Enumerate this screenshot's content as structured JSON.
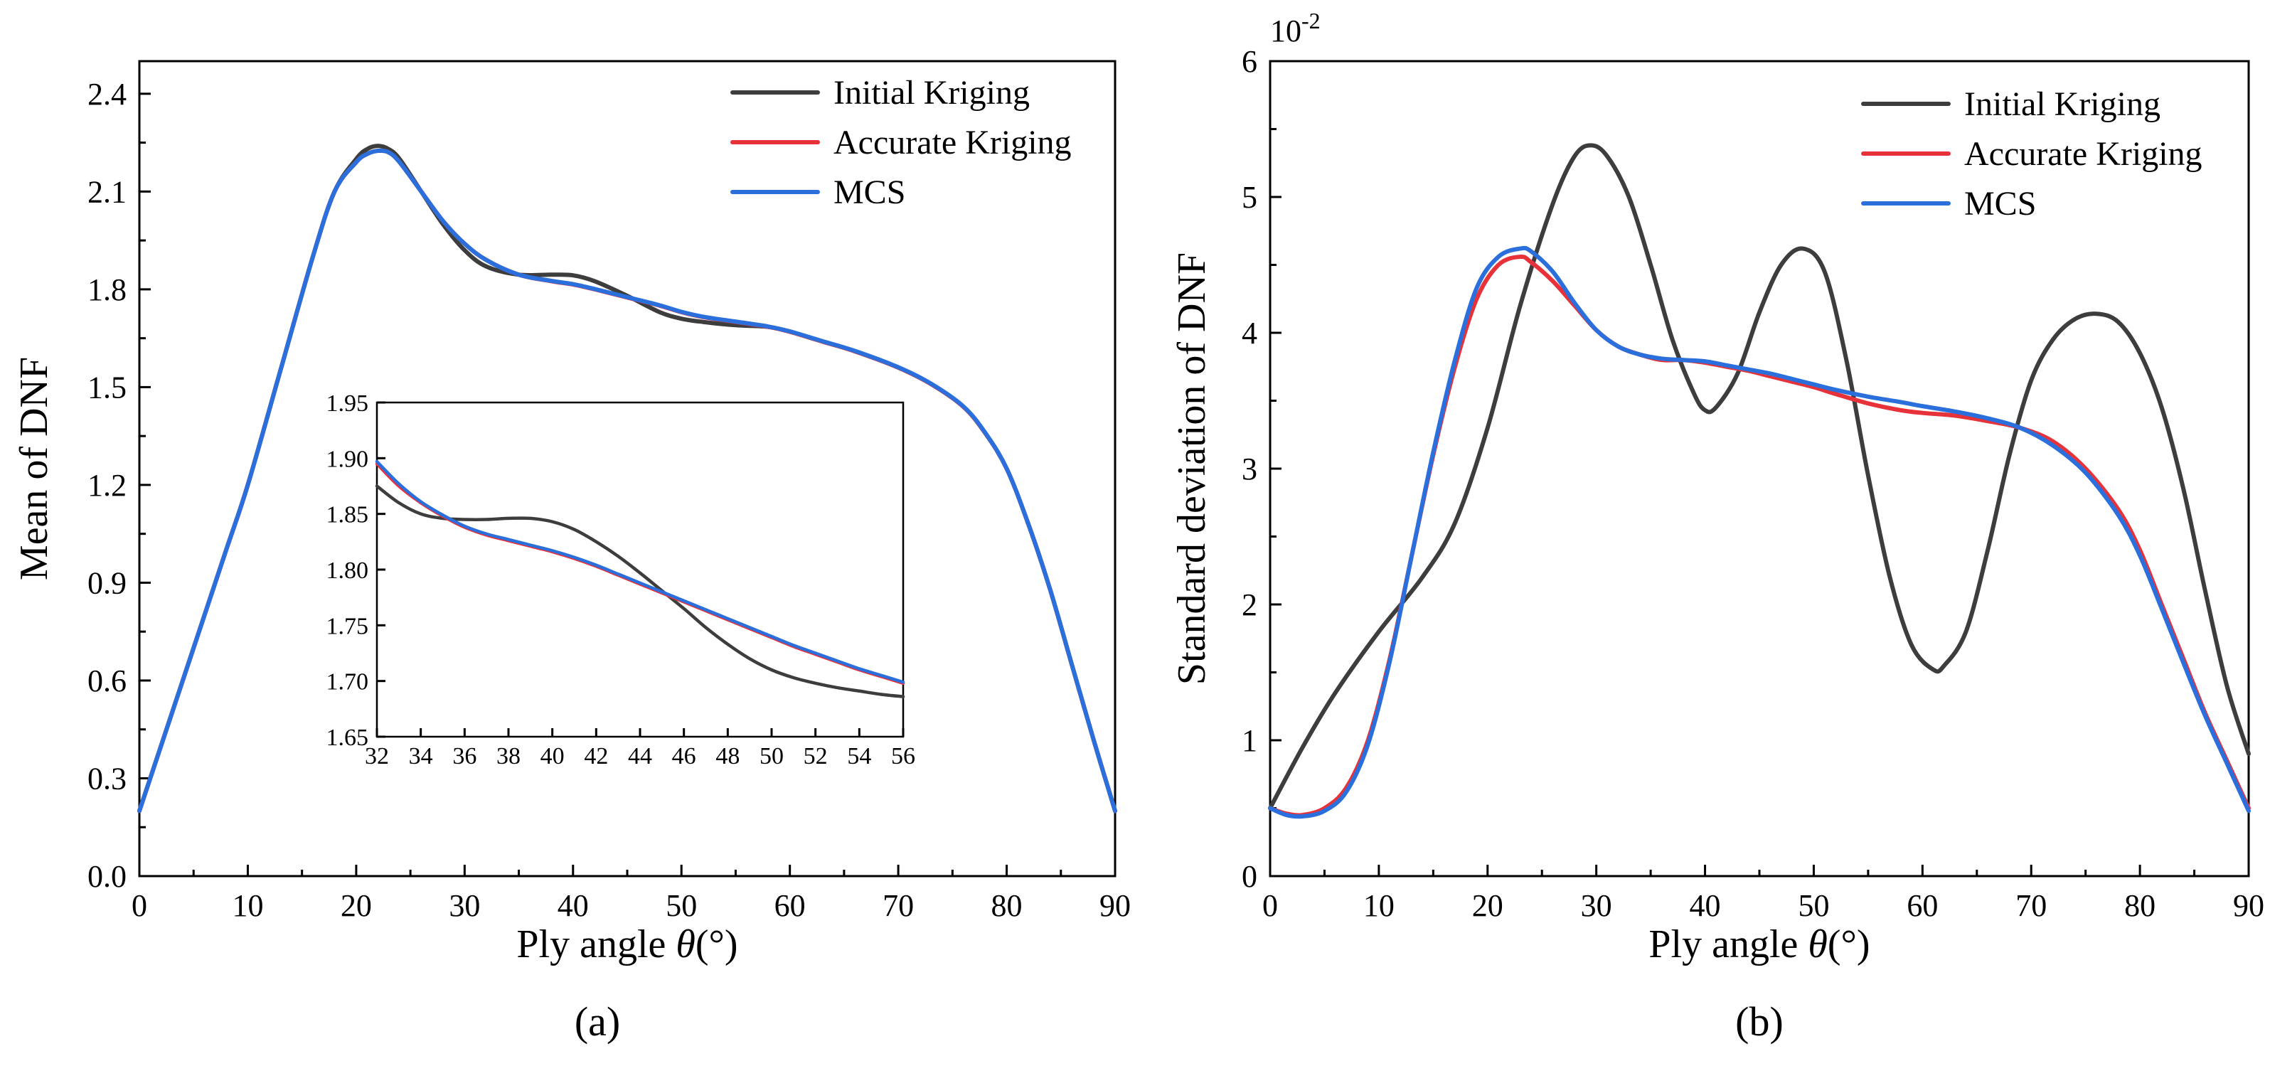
{
  "chart_data": [
    {
      "id": "a",
      "type": "line",
      "caption": "(a)",
      "xlabel_prefix": "Ply angle ",
      "xlabel_symbol": "θ",
      "xlabel_suffix": "(°)",
      "ylabel": "Mean of DNF",
      "xlim": [
        0,
        90
      ],
      "ylim": [
        0,
        2.5
      ],
      "xticks": [
        0,
        10,
        20,
        30,
        40,
        50,
        60,
        70,
        80,
        90
      ],
      "xtick_labels": [
        "0",
        "10",
        "20",
        "30",
        "40",
        "50",
        "60",
        "70",
        "80",
        "90"
      ],
      "yticks": [
        0.0,
        0.3,
        0.6,
        0.9,
        1.2,
        1.5,
        1.8,
        2.1,
        2.4
      ],
      "ytick_labels": [
        "0.0",
        "0.3",
        "0.6",
        "0.9",
        "1.2",
        "1.5",
        "1.8",
        "2.1",
        "2.4"
      ],
      "legend": [
        "Initial Kriging",
        "Accurate Kriging",
        "MCS"
      ],
      "colors": [
        "#3d3d3d",
        "#e8323a",
        "#2a6fdc"
      ],
      "series": [
        {
          "name": "Initial Kriging",
          "x": [
            0,
            2,
            5,
            8,
            10,
            13,
            16,
            18,
            20,
            21,
            22,
            23,
            24,
            26,
            28,
            30,
            32,
            35,
            38,
            40,
            42,
            45,
            48,
            50,
            52,
            55,
            58,
            60,
            63,
            66,
            70,
            73,
            76,
            78,
            80,
            82,
            84,
            86,
            88,
            90
          ],
          "y": [
            0.2,
            0.4,
            0.7,
            1.0,
            1.2,
            1.55,
            1.9,
            2.1,
            2.2,
            2.23,
            2.24,
            2.23,
            2.2,
            2.1,
            2.0,
            1.92,
            1.87,
            1.845,
            1.845,
            1.843,
            1.825,
            1.78,
            1.73,
            1.71,
            1.7,
            1.69,
            1.685,
            1.67,
            1.64,
            1.61,
            1.56,
            1.51,
            1.44,
            1.36,
            1.25,
            1.08,
            0.88,
            0.65,
            0.42,
            0.2
          ]
        },
        {
          "name": "Accurate Kriging",
          "x": [
            0,
            2,
            5,
            8,
            10,
            13,
            16,
            18,
            20,
            21,
            22,
            23,
            24,
            26,
            28,
            30,
            32,
            35,
            38,
            40,
            42,
            45,
            48,
            50,
            52,
            55,
            58,
            60,
            63,
            66,
            70,
            73,
            76,
            78,
            80,
            82,
            84,
            86,
            88,
            90
          ],
          "y": [
            0.2,
            0.4,
            0.7,
            1.0,
            1.2,
            1.55,
            1.9,
            2.1,
            2.19,
            2.215,
            2.225,
            2.22,
            2.19,
            2.1,
            2.01,
            1.94,
            1.89,
            1.845,
            1.825,
            1.815,
            1.8,
            1.775,
            1.75,
            1.73,
            1.715,
            1.7,
            1.685,
            1.67,
            1.64,
            1.61,
            1.56,
            1.51,
            1.44,
            1.36,
            1.25,
            1.08,
            0.88,
            0.65,
            0.42,
            0.2
          ]
        },
        {
          "name": "MCS",
          "x": [
            0,
            2,
            5,
            8,
            10,
            13,
            16,
            18,
            20,
            21,
            22,
            23,
            24,
            26,
            28,
            30,
            32,
            35,
            38,
            40,
            42,
            45,
            48,
            50,
            52,
            55,
            58,
            60,
            63,
            66,
            70,
            73,
            76,
            78,
            80,
            82,
            84,
            86,
            88,
            90
          ],
          "y": [
            0.2,
            0.4,
            0.7,
            1.0,
            1.2,
            1.55,
            1.9,
            2.1,
            2.19,
            2.215,
            2.225,
            2.22,
            2.19,
            2.1,
            2.01,
            1.94,
            1.89,
            1.845,
            1.826,
            1.816,
            1.801,
            1.776,
            1.751,
            1.731,
            1.716,
            1.701,
            1.686,
            1.671,
            1.641,
            1.611,
            1.561,
            1.511,
            1.441,
            1.361,
            1.25,
            1.08,
            0.88,
            0.65,
            0.42,
            0.2
          ]
        }
      ],
      "inset": {
        "xlim": [
          32,
          56
        ],
        "ylim": [
          1.65,
          1.95
        ],
        "xticks": [
          32,
          34,
          36,
          38,
          40,
          42,
          44,
          46,
          48,
          50,
          52,
          54,
          56
        ],
        "xtick_labels": [
          "32",
          "34",
          "36",
          "38",
          "40",
          "42",
          "44",
          "46",
          "48",
          "50",
          "52",
          "54",
          "56"
        ],
        "yticks": [
          1.65,
          1.7,
          1.75,
          1.8,
          1.85,
          1.9,
          1.95
        ],
        "ytick_labels": [
          "1.65",
          "1.70",
          "1.75",
          "1.80",
          "1.85",
          "1.90",
          "1.95"
        ],
        "series": [
          {
            "name": "Initial Kriging",
            "x": [
              32,
              33,
              34,
              35,
              36,
              37,
              38,
              39,
              40,
              41,
              42,
              43,
              44,
              45,
              46,
              47,
              48,
              49,
              50,
              51,
              52,
              53,
              54,
              55,
              56
            ],
            "y": [
              1.875,
              1.86,
              1.85,
              1.846,
              1.845,
              1.845,
              1.846,
              1.846,
              1.843,
              1.836,
              1.825,
              1.812,
              1.797,
              1.781,
              1.765,
              1.748,
              1.733,
              1.72,
              1.71,
              1.703,
              1.698,
              1.694,
              1.691,
              1.688,
              1.686
            ]
          },
          {
            "name": "Accurate Kriging",
            "x": [
              32,
              33,
              34,
              35,
              36,
              37,
              38,
              39,
              40,
              41,
              42,
              43,
              44,
              45,
              46,
              47,
              48,
              49,
              50,
              51,
              52,
              53,
              54,
              55,
              56
            ],
            "y": [
              1.895,
              1.875,
              1.86,
              1.848,
              1.838,
              1.831,
              1.826,
              1.821,
              1.816,
              1.81,
              1.803,
              1.795,
              1.787,
              1.779,
              1.771,
              1.763,
              1.755,
              1.747,
              1.739,
              1.731,
              1.724,
              1.717,
              1.71,
              1.704,
              1.698
            ]
          },
          {
            "name": "MCS",
            "x": [
              32,
              33,
              34,
              35,
              36,
              37,
              38,
              39,
              40,
              41,
              42,
              43,
              44,
              45,
              46,
              47,
              48,
              49,
              50,
              51,
              52,
              53,
              54,
              55,
              56
            ],
            "y": [
              1.897,
              1.877,
              1.861,
              1.849,
              1.839,
              1.832,
              1.827,
              1.822,
              1.817,
              1.811,
              1.804,
              1.796,
              1.788,
              1.78,
              1.772,
              1.764,
              1.756,
              1.748,
              1.74,
              1.732,
              1.725,
              1.718,
              1.711,
              1.705,
              1.699
            ]
          }
        ]
      }
    },
    {
      "id": "b",
      "type": "line",
      "caption": "(b)",
      "xlabel_prefix": "Ply angle ",
      "xlabel_symbol": "θ",
      "xlabel_suffix": "(°)",
      "ylabel": "Standard deviation of DNF",
      "yscale_label_base": "10",
      "yscale_label_exp": "-2",
      "xlim": [
        0,
        90
      ],
      "ylim": [
        0,
        6
      ],
      "xticks": [
        0,
        10,
        20,
        30,
        40,
        50,
        60,
        70,
        80,
        90
      ],
      "xtick_labels": [
        "0",
        "10",
        "20",
        "30",
        "40",
        "50",
        "60",
        "70",
        "80",
        "90"
      ],
      "yticks": [
        0,
        1,
        2,
        3,
        4,
        5,
        6
      ],
      "ytick_labels": [
        "0",
        "1",
        "2",
        "3",
        "4",
        "5",
        "6"
      ],
      "legend": [
        "Initial Kriging",
        "Accurate Kriging",
        "MCS"
      ],
      "colors": [
        "#3d3d3d",
        "#e8323a",
        "#2a6fdc"
      ],
      "series": [
        {
          "name": "Initial Kriging",
          "x": [
            0,
            3,
            6,
            10,
            14,
            17,
            20,
            23,
            26,
            28,
            29.5,
            31,
            33,
            35,
            37,
            39,
            40,
            41,
            43,
            45,
            47,
            49,
            51,
            53,
            55,
            57,
            59,
            61,
            62,
            64,
            66,
            68,
            70,
            72,
            74,
            76,
            78,
            80,
            82,
            84,
            86,
            88,
            90
          ],
          "y": [
            0.5,
            0.95,
            1.35,
            1.8,
            2.2,
            2.6,
            3.3,
            4.2,
            4.95,
            5.3,
            5.38,
            5.3,
            5.0,
            4.5,
            3.95,
            3.55,
            3.43,
            3.45,
            3.7,
            4.15,
            4.5,
            4.62,
            4.45,
            3.8,
            2.95,
            2.2,
            1.7,
            1.52,
            1.55,
            1.8,
            2.4,
            3.1,
            3.65,
            3.95,
            4.1,
            4.14,
            4.08,
            3.85,
            3.45,
            2.85,
            2.1,
            1.4,
            0.9
          ]
        },
        {
          "name": "Accurate Kriging",
          "x": [
            0,
            1.5,
            3,
            5,
            7,
            9,
            11,
            13,
            15,
            17,
            19,
            21,
            23,
            24,
            26,
            28,
            30,
            32,
            34,
            36,
            38,
            40,
            42,
            44,
            46,
            48,
            50,
            52,
            55,
            58,
            60,
            63,
            66,
            69,
            72,
            75,
            78,
            80,
            82,
            84,
            86,
            88,
            90
          ],
          "y": [
            0.5,
            0.46,
            0.45,
            0.5,
            0.65,
            1.0,
            1.6,
            2.35,
            3.1,
            3.75,
            4.25,
            4.5,
            4.56,
            4.52,
            4.38,
            4.2,
            4.02,
            3.9,
            3.84,
            3.8,
            3.8,
            3.78,
            3.75,
            3.72,
            3.68,
            3.64,
            3.6,
            3.55,
            3.48,
            3.43,
            3.41,
            3.39,
            3.35,
            3.3,
            3.2,
            3.0,
            2.7,
            2.4,
            2.0,
            1.6,
            1.2,
            0.85,
            0.5
          ]
        },
        {
          "name": "MCS",
          "x": [
            0,
            1.5,
            3,
            5,
            7,
            9,
            11,
            13,
            15,
            17,
            19,
            21,
            23,
            24,
            26,
            28,
            30,
            32,
            34,
            36,
            38,
            40,
            42,
            44,
            46,
            48,
            50,
            52,
            55,
            58,
            60,
            63,
            66,
            69,
            72,
            75,
            78,
            80,
            82,
            84,
            86,
            88,
            90
          ],
          "y": [
            0.5,
            0.45,
            0.44,
            0.48,
            0.62,
            0.97,
            1.58,
            2.35,
            3.12,
            3.8,
            4.33,
            4.56,
            4.62,
            4.6,
            4.45,
            4.22,
            4.02,
            3.9,
            3.84,
            3.81,
            3.8,
            3.79,
            3.76,
            3.73,
            3.7,
            3.66,
            3.62,
            3.58,
            3.53,
            3.49,
            3.46,
            3.42,
            3.37,
            3.3,
            3.17,
            2.97,
            2.66,
            2.36,
            1.97,
            1.57,
            1.18,
            0.83,
            0.48
          ]
        }
      ]
    }
  ]
}
